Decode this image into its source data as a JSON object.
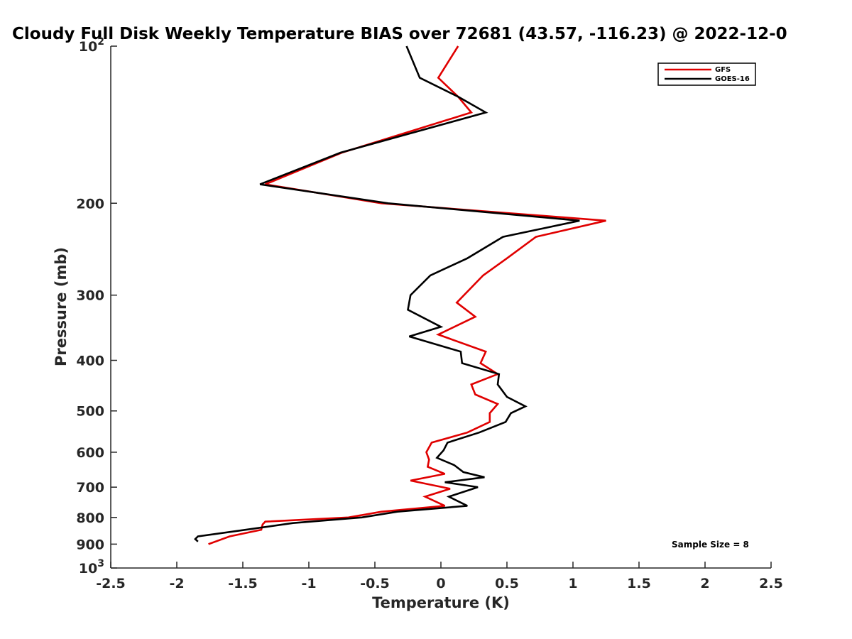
{
  "chart_data": {
    "type": "line",
    "title": "Cloudy Full Disk Weekly Temperature BIAS over 72681 (43.57, -116.23) @ 2022-12-0",
    "xlabel": "Temperature (K)",
    "ylabel": "Pressure (mb)",
    "xlim": [
      -2.5,
      2.5
    ],
    "ylim": [
      100,
      1000
    ],
    "y_scale": "log",
    "y_reversed": true,
    "grid": false,
    "legend_position": "top-right",
    "xticks": [
      -2.5,
      -2,
      -1.5,
      -1,
      -0.5,
      0,
      0.5,
      1,
      1.5,
      2,
      2.5
    ],
    "xtick_labels": [
      "-2.5",
      "-2",
      "-1.5",
      "-1",
      "-0.5",
      "0",
      "0.5",
      "1",
      "1.5",
      "2",
      "2.5"
    ],
    "yticks": [
      100,
      200,
      300,
      400,
      500,
      600,
      700,
      800,
      900,
      1000
    ],
    "ytick_labels": [
      {
        "base": "10",
        "exp": "2"
      },
      {
        "base": "200",
        "exp": ""
      },
      {
        "base": "300",
        "exp": ""
      },
      {
        "base": "400",
        "exp": ""
      },
      {
        "base": "500",
        "exp": ""
      },
      {
        "base": "600",
        "exp": ""
      },
      {
        "base": "700",
        "exp": ""
      },
      {
        "base": "800",
        "exp": ""
      },
      {
        "base": "900",
        "exp": ""
      },
      {
        "base": "10",
        "exp": "3"
      }
    ],
    "annotation": "Sample Size = 8",
    "series": [
      {
        "name": "GFS",
        "color": "#e00000",
        "points": [
          [
            0.13,
            100
          ],
          [
            -0.02,
            115
          ],
          [
            0.13,
            125
          ],
          [
            0.23,
            134
          ],
          [
            -0.75,
            160
          ],
          [
            -1.33,
            184
          ],
          [
            -0.45,
            200
          ],
          [
            1.25,
            216
          ],
          [
            0.72,
            232
          ],
          [
            0.5,
            255
          ],
          [
            0.32,
            275
          ],
          [
            0.12,
            310
          ],
          [
            0.26,
            330
          ],
          [
            -0.02,
            357
          ],
          [
            0.34,
            385
          ],
          [
            0.3,
            405
          ],
          [
            0.43,
            425
          ],
          [
            0.23,
            445
          ],
          [
            0.26,
            465
          ],
          [
            0.43,
            485
          ],
          [
            0.37,
            505
          ],
          [
            0.37,
            525
          ],
          [
            0.2,
            550
          ],
          [
            -0.07,
            575
          ],
          [
            -0.11,
            600
          ],
          [
            -0.09,
            620
          ],
          [
            -0.1,
            640
          ],
          [
            0.03,
            660
          ],
          [
            -0.23,
            680
          ],
          [
            0.07,
            705
          ],
          [
            -0.12,
            730
          ],
          [
            0.03,
            760
          ],
          [
            -0.45,
            780
          ],
          [
            -0.7,
            800
          ],
          [
            -1.33,
            815
          ],
          [
            -1.35,
            825
          ],
          [
            -1.36,
            845
          ],
          [
            -1.6,
            870
          ],
          [
            -1.76,
            900
          ]
        ]
      },
      {
        "name": "GOES-16",
        "color": "#000000",
        "points": [
          [
            -0.26,
            100
          ],
          [
            -0.16,
            115
          ],
          [
            0.13,
            125
          ],
          [
            0.34,
            134
          ],
          [
            -0.76,
            160
          ],
          [
            -1.37,
            184
          ],
          [
            -0.4,
            200
          ],
          [
            1.05,
            216
          ],
          [
            0.47,
            232
          ],
          [
            0.2,
            255
          ],
          [
            -0.08,
            275
          ],
          [
            -0.23,
            300
          ],
          [
            -0.25,
            320
          ],
          [
            0.0,
            345
          ],
          [
            -0.24,
            360
          ],
          [
            0.15,
            385
          ],
          [
            0.16,
            405
          ],
          [
            0.44,
            425
          ],
          [
            0.43,
            445
          ],
          [
            0.5,
            470
          ],
          [
            0.64,
            490
          ],
          [
            0.53,
            505
          ],
          [
            0.49,
            525
          ],
          [
            0.29,
            550
          ],
          [
            0.05,
            575
          ],
          [
            0.02,
            595
          ],
          [
            -0.03,
            615
          ],
          [
            0.1,
            635
          ],
          [
            0.17,
            655
          ],
          [
            0.33,
            670
          ],
          [
            0.03,
            685
          ],
          [
            0.28,
            700
          ],
          [
            0.06,
            730
          ],
          [
            0.2,
            760
          ],
          [
            -0.33,
            780
          ],
          [
            -0.6,
            800
          ],
          [
            -1.12,
            820
          ],
          [
            -1.48,
            845
          ],
          [
            -1.84,
            870
          ],
          [
            -1.86,
            880
          ],
          [
            -1.84,
            890
          ]
        ]
      }
    ]
  }
}
